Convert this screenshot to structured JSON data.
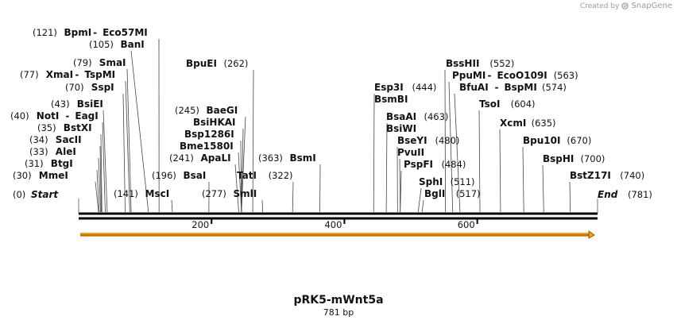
{
  "watermark": {
    "created_by": "Created by",
    "brand": "SnapGene"
  },
  "map": {
    "name": "pRK5-mWnt5a",
    "length_label": "781 bp",
    "length": 781,
    "start_label": "Start",
    "end_label": "End",
    "start_pos": "(0)",
    "end_pos": "(781)",
    "ticks": [
      200,
      400,
      600
    ],
    "arrow_color": "#f0a020"
  },
  "sites": [
    {
      "name": "MmeI",
      "pos": 30
    },
    {
      "name": "BtgI",
      "pos": 31
    },
    {
      "name": "AleI",
      "pos": 33
    },
    {
      "name": "SacII",
      "pos": 34
    },
    {
      "name": "BstXI",
      "pos": 35
    },
    {
      "name": "NotI",
      "pos": 40,
      "partner": "EagI"
    },
    {
      "name": "BsiEI",
      "pos": 43
    },
    {
      "name": "SspI",
      "pos": 70
    },
    {
      "name": "XmaI",
      "pos": 77,
      "partner": "TspMI"
    },
    {
      "name": "SmaI",
      "pos": 79
    },
    {
      "name": "BanI",
      "pos": 105
    },
    {
      "name": "BpmI",
      "pos": 121,
      "partner": "Eco57MI"
    },
    {
      "name": "MscI",
      "pos": 141
    },
    {
      "name": "BsaI",
      "pos": 196
    },
    {
      "name": "ApaLI",
      "pos": 241
    },
    {
      "name": "Bme1580I",
      "pos": 245
    },
    {
      "name": "Bsp1286I",
      "pos": 245
    },
    {
      "name": "BsiHKAI",
      "pos": 245
    },
    {
      "name": "BaeGI",
      "pos": 245
    },
    {
      "name": "BpuEI",
      "pos": 262
    },
    {
      "name": "SmlI",
      "pos": 277
    },
    {
      "name": "TatI",
      "pos": 322
    },
    {
      "name": "BsmI",
      "pos": 363
    },
    {
      "name": "Esp3I",
      "pos": 444
    },
    {
      "name": "BsmBI",
      "pos": 444
    },
    {
      "name": "BsaAI",
      "pos": 463
    },
    {
      "name": "BsiWI",
      "pos": 463
    },
    {
      "name": "BseYI",
      "pos": 480
    },
    {
      "name": "PvuII",
      "pos": 484
    },
    {
      "name": "PspFI",
      "pos": 484
    },
    {
      "name": "SphI",
      "pos": 511
    },
    {
      "name": "BglI",
      "pos": 517
    },
    {
      "name": "BssHII",
      "pos": 552
    },
    {
      "name": "PpuMI",
      "pos": 563,
      "partner": "EcoO109I"
    },
    {
      "name": "BfuAI",
      "pos": 574,
      "partner": "BspMI"
    },
    {
      "name": "TsoI",
      "pos": 604
    },
    {
      "name": "XcmI",
      "pos": 635
    },
    {
      "name": "Bpu10I",
      "pos": 670
    },
    {
      "name": "BspHI",
      "pos": 700
    },
    {
      "name": "BstZ17I",
      "pos": 740
    }
  ]
}
